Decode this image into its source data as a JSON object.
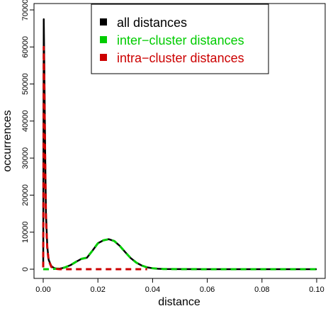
{
  "chart_data": {
    "type": "line",
    "xlabel": "distance",
    "ylabel": "occurrences",
    "xlim": [
      0.0,
      0.1
    ],
    "ylim": [
      0,
      70000
    ],
    "x_ticks": [
      0.0,
      0.02,
      0.04,
      0.06,
      0.08,
      0.1
    ],
    "x_tick_labels": [
      "0.00",
      "0.02",
      "0.04",
      "0.06",
      "0.08",
      "0.10"
    ],
    "y_ticks": [
      0,
      10000,
      20000,
      30000,
      40000,
      50000,
      60000,
      70000
    ],
    "y_tick_labels": [
      "0",
      "10000",
      "20000",
      "30000",
      "40000",
      "50000",
      "60000",
      "70000"
    ],
    "grid": false,
    "legend_position": "top-center",
    "series": [
      {
        "name": "all distances",
        "color": "#000000",
        "style": "solid",
        "x": [
          0.0,
          0.0002,
          0.0004,
          0.0007,
          0.001,
          0.0015,
          0.002,
          0.003,
          0.004,
          0.005,
          0.006,
          0.007,
          0.008,
          0.009,
          0.01,
          0.012,
          0.014,
          0.016,
          0.018,
          0.02,
          0.022,
          0.024,
          0.026,
          0.028,
          0.03,
          0.032,
          0.034,
          0.036,
          0.038,
          0.04,
          0.042,
          0.044,
          0.05,
          0.06,
          0.07,
          0.08,
          0.09,
          0.1
        ],
        "y": [
          500,
          67500,
          55000,
          32000,
          15000,
          6000,
          2500,
          800,
          300,
          150,
          150,
          300,
          500,
          800,
          1100,
          2000,
          2800,
          3100,
          5000,
          7000,
          7800,
          8100,
          7600,
          6300,
          4600,
          3000,
          1800,
          1000,
          500,
          250,
          120,
          60,
          20,
          10,
          5,
          5,
          5,
          5
        ]
      },
      {
        "name": "inter-cluster distances",
        "color": "#00cc00",
        "style": "dashed",
        "x": [
          0.0,
          0.002,
          0.004,
          0.005,
          0.006,
          0.007,
          0.008,
          0.009,
          0.01,
          0.012,
          0.014,
          0.016,
          0.018,
          0.02,
          0.022,
          0.024,
          0.026,
          0.028,
          0.03,
          0.032,
          0.034,
          0.036,
          0.038,
          0.04,
          0.042,
          0.044,
          0.05,
          0.06,
          0.07,
          0.08,
          0.09,
          0.1
        ],
        "y": [
          0,
          0,
          100,
          150,
          150,
          300,
          500,
          800,
          1100,
          2000,
          2800,
          3100,
          5000,
          7000,
          7800,
          8100,
          7600,
          6300,
          4600,
          3000,
          1800,
          1000,
          500,
          250,
          120,
          60,
          20,
          10,
          5,
          5,
          5,
          5
        ]
      },
      {
        "name": "intra-cluster distances",
        "color": "#cc0000",
        "style": "dashed",
        "x": [
          0.0,
          0.0002,
          0.0004,
          0.0007,
          0.001,
          0.0015,
          0.002,
          0.003,
          0.004,
          0.006,
          0.01,
          0.02,
          0.03,
          0.038
        ],
        "y": [
          500,
          60000,
          50000,
          30000,
          14000,
          5500,
          2300,
          600,
          150,
          0,
          0,
          0,
          0,
          0
        ]
      }
    ]
  }
}
